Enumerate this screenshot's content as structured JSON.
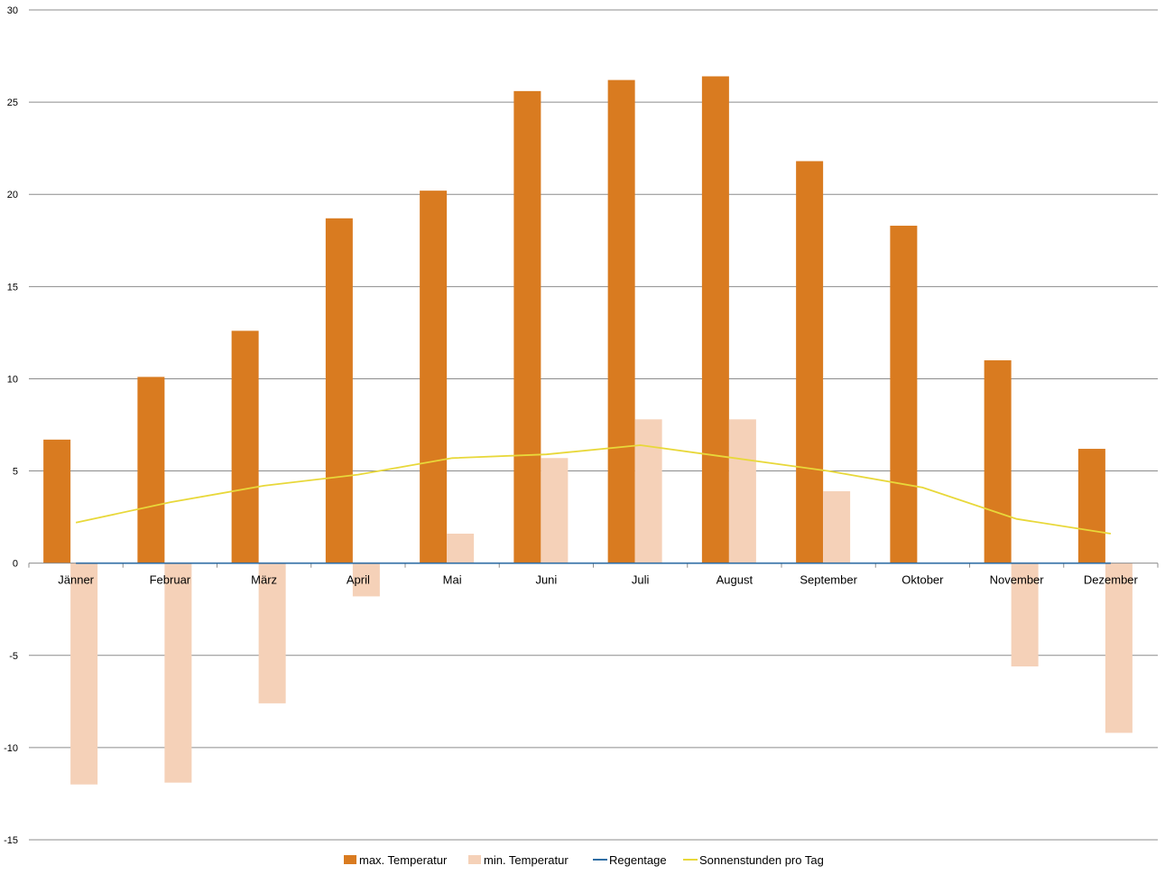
{
  "chart_data": {
    "type": "bar",
    "categories": [
      "Jänner",
      "Februar",
      "März",
      "April",
      "Mai",
      "Juni",
      "Juli",
      "August",
      "September",
      "Oktober",
      "November",
      "Dezember"
    ],
    "series": [
      {
        "name": "max. Temperatur",
        "kind": "bar",
        "color": "#D97B20",
        "values": [
          6.7,
          10.1,
          12.6,
          18.7,
          20.2,
          25.6,
          26.2,
          26.4,
          21.8,
          18.3,
          11.0,
          6.2
        ]
      },
      {
        "name": "min. Temperatur",
        "kind": "bar",
        "color": "#F5D1B8",
        "values": [
          -12.0,
          -11.9,
          -7.6,
          -1.8,
          1.6,
          5.7,
          7.8,
          7.8,
          3.9,
          0.0,
          -5.6,
          -9.2
        ]
      },
      {
        "name": "Regentage",
        "kind": "line",
        "color": "#2E6DA4",
        "values": [
          0,
          0,
          0,
          0,
          0,
          0,
          0,
          0,
          0,
          0,
          0,
          0
        ]
      },
      {
        "name": "Sonnenstunden pro Tag",
        "kind": "line",
        "color": "#E8D83A",
        "values": [
          2.2,
          3.3,
          4.2,
          4.8,
          5.7,
          5.9,
          6.4,
          5.7,
          5.0,
          4.1,
          2.4,
          1.6
        ]
      }
    ],
    "ylim": [
      -15,
      30
    ],
    "yticks": [
      30,
      25,
      20,
      15,
      10,
      5,
      0,
      -5,
      -10,
      -15
    ],
    "ytick_labels": [
      "30",
      "25",
      "20",
      "15",
      "10",
      "5",
      "0",
      "-5",
      "-10",
      "-15"
    ],
    "grid": true,
    "legend_position": "bottom",
    "colors": {
      "gridline": "#8C8C8C",
      "axis": "#8C8C8C",
      "text": "#000000"
    }
  }
}
